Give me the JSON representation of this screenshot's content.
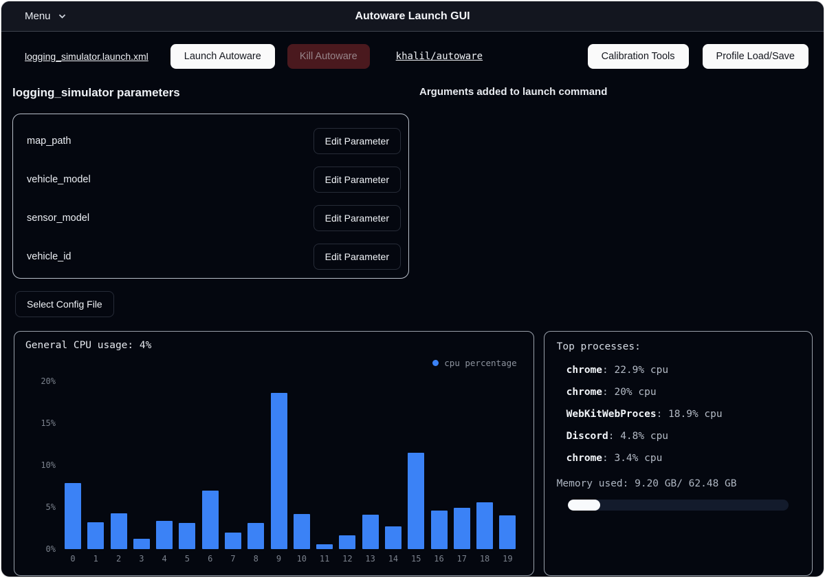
{
  "window": {
    "title": "Autoware Launch GUI"
  },
  "menu": {
    "label": "Menu"
  },
  "toolbar": {
    "launch_file_link": "logging_simulator.launch.xml",
    "launch_button": "Launch Autoware",
    "kill_button": "Kill Autoware",
    "repo_link": "khalil/autoware",
    "calibration_button": "Calibration Tools",
    "profile_button": "Profile Load/Save"
  },
  "parameters": {
    "heading": "logging_simulator parameters",
    "items": [
      "map_path",
      "vehicle_model",
      "sensor_model",
      "vehicle_id"
    ],
    "edit_button_label": "Edit Parameter",
    "select_config_button": "Select Config File"
  },
  "arguments": {
    "heading": "Arguments added to launch command"
  },
  "chart_data": {
    "type": "bar",
    "title": "General CPU usage: 4%",
    "legend": [
      "cpu percentage"
    ],
    "legend_position": "top-right",
    "categories": [
      "0",
      "1",
      "2",
      "3",
      "4",
      "5",
      "6",
      "7",
      "8",
      "9",
      "10",
      "11",
      "12",
      "13",
      "14",
      "15",
      "16",
      "17",
      "18",
      "19"
    ],
    "values": [
      7.9,
      3.2,
      4.3,
      1.2,
      3.4,
      3.1,
      7.0,
      2.0,
      3.1,
      18.6,
      4.2,
      0.6,
      1.6,
      4.1,
      2.7,
      11.5,
      4.6,
      4.9,
      5.6,
      4.0
    ],
    "xlabel": "",
    "ylabel": "",
    "ylim": [
      0,
      20
    ],
    "yticks": [
      0,
      5,
      10,
      15,
      20
    ],
    "ytick_labels": [
      "0%",
      "5%",
      "10%",
      "15%",
      "20%"
    ],
    "grid": false,
    "bar_color": "#3b82f6"
  },
  "processes": {
    "heading": "Top processes:",
    "items": [
      {
        "name": "chrome",
        "value": "22.9% cpu"
      },
      {
        "name": "chrome",
        "value": "20% cpu"
      },
      {
        "name": "WebKitWebProces",
        "value": "18.9% cpu"
      },
      {
        "name": "Discord",
        "value": "4.8% cpu"
      },
      {
        "name": "chrome",
        "value": "3.4% cpu"
      }
    ],
    "memory_label": "Memory used: 9.20 GB/ 62.48 GB",
    "memory_percent": 14.7
  },
  "colors": {
    "accent_blue": "#3b82f6",
    "kill_button_bg": "#4a191e",
    "titlebar_bg": "#13161f",
    "page_bg": "#04070f",
    "memory_fill": "#f8fafc"
  }
}
